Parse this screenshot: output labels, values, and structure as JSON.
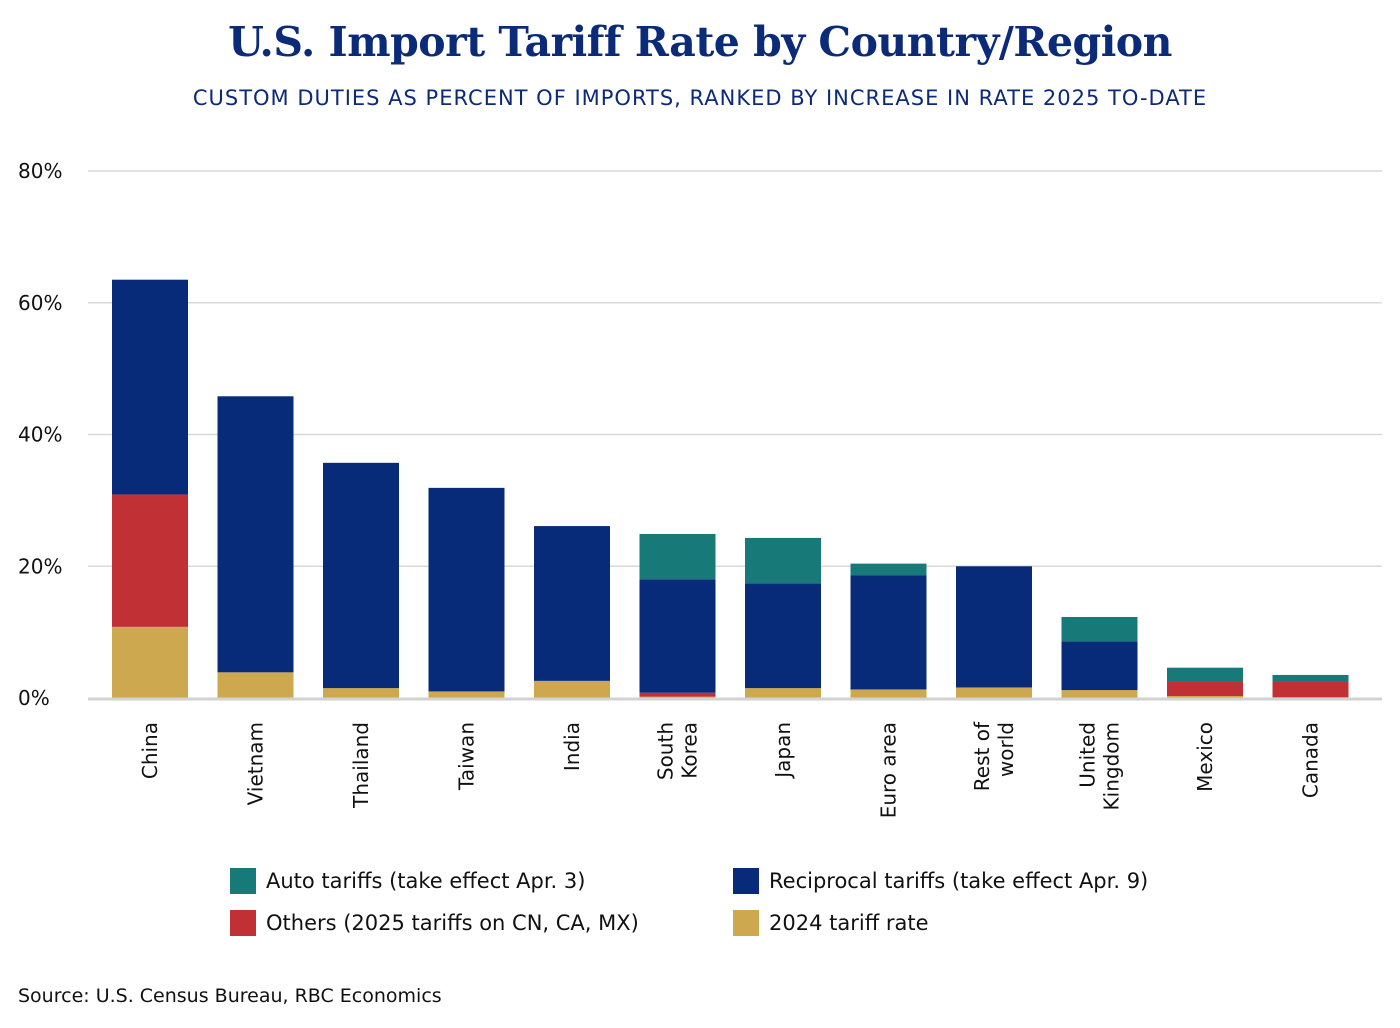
{
  "chart_data": {
    "type": "bar",
    "stacked": true,
    "title": "U.S. Import Tariff Rate by Country/Region",
    "subtitle": "CUSTOM DUTIES AS PERCENT OF IMPORTS, RANKED BY INCREASE IN RATE 2025 TO-DATE",
    "categories": [
      [
        "China"
      ],
      [
        "Vietnam"
      ],
      [
        "Thailand"
      ],
      [
        "Taiwan"
      ],
      [
        "India"
      ],
      [
        "South",
        "Korea"
      ],
      [
        "Japan"
      ],
      [
        "Euro area"
      ],
      [
        "Rest of",
        "world"
      ],
      [
        "United",
        "Kingdom"
      ],
      [
        "Mexico"
      ],
      [
        "Canada"
      ]
    ],
    "series": [
      {
        "name": "2024 tariff rate",
        "color": "#cea84e",
        "values": [
          10.8,
          3.9,
          1.5,
          1.0,
          2.6,
          0.2,
          1.5,
          1.3,
          1.6,
          1.2,
          0.3,
          0.1
        ]
      },
      {
        "name": "Others (2025 tariffs on CN, CA, MX)",
        "color": "#c03034",
        "values": [
          20.1,
          0,
          0,
          0,
          0,
          0.6,
          0,
          0,
          0,
          0,
          2.2,
          2.4
        ]
      },
      {
        "name": "Reciprocal tariffs (take effect Apr. 9)",
        "color": "#082b79",
        "values": [
          32.6,
          41.9,
          34.2,
          30.9,
          23.5,
          17.2,
          15.9,
          17.3,
          18.4,
          7.4,
          0,
          0
        ]
      },
      {
        "name": "Auto tariffs (take effect Apr. 3)",
        "color": "#187979",
        "values": [
          0,
          0,
          0,
          0,
          0,
          6.9,
          6.9,
          1.8,
          0,
          3.7,
          2.1,
          1.0
        ]
      }
    ],
    "yticks": [
      "0%",
      "20%",
      "40%",
      "60%",
      "80%"
    ],
    "ylim": [
      0,
      80
    ],
    "grid": true,
    "legend_position": "bottom",
    "legend_order": [
      "Auto tariffs (take effect Apr. 3)",
      "Reciprocal tariffs (take effect Apr. 9)",
      "Others (2025 tariffs on CN, CA, MX)",
      "2024 tariff rate"
    ]
  },
  "source": "Source: U.S. Census Bureau, RBC Economics"
}
